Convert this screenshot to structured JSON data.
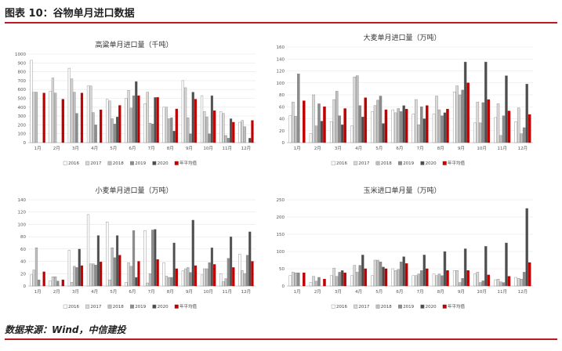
{
  "header": {
    "title": "图表 10：谷物单月进口数据"
  },
  "footer": {
    "source": "数据来源：Wind，中信建投"
  },
  "colors": {
    "2016": "#ffffff",
    "2017": "#d9d9d9",
    "2018": "#bfbfbf",
    "2019": "#8c8c8c",
    "2020": "#4d4d4d",
    "avg": "#c00000",
    "accent": "#b81c22"
  },
  "chart_data": [
    {
      "type": "bar",
      "title": "高粱单月进口量（千吨）",
      "categories": [
        "1月",
        "2月",
        "3月",
        "4月",
        "5月",
        "6月",
        "7月",
        "8月",
        "9月",
        "10月",
        "11月",
        "12月"
      ],
      "ylim": [
        0,
        1000
      ],
      "ystep": 100,
      "legend_position": "bottom",
      "series": [
        {
          "name": "2016",
          "values": [
            930,
            580,
            840,
            640,
            490,
            500,
            440,
            400,
            700,
            530,
            350,
            230
          ]
        },
        {
          "name": "2017",
          "values": [
            570,
            730,
            720,
            640,
            470,
            590,
            570,
            400,
            620,
            350,
            330,
            250
          ]
        },
        {
          "name": "2018",
          "values": [
            570,
            560,
            570,
            340,
            270,
            390,
            220,
            270,
            280,
            290,
            80,
            180
          ]
        },
        {
          "name": "2019",
          "values": [
            0,
            0,
            330,
            200,
            210,
            530,
            210,
            280,
            100,
            100,
            50,
            0
          ]
        },
        {
          "name": "2020",
          "values": [
            0,
            0,
            0,
            0,
            290,
            690,
            510,
            130,
            570,
            530,
            270,
            50
          ]
        },
        {
          "name": "年平均值",
          "values": [
            560,
            490,
            560,
            370,
            420,
            530,
            510,
            380,
            490,
            360,
            230,
            250
          ]
        }
      ]
    },
    {
      "type": "bar",
      "title": "大麦单月进口量（万吨）",
      "categories": [
        "1月",
        "2月",
        "3月",
        "4月",
        "5月",
        "6月",
        "7月",
        "8月",
        "9月",
        "10月",
        "11月",
        "12月"
      ],
      "ylim": [
        0,
        160
      ],
      "ystep": 20,
      "legend_position": "bottom",
      "series": [
        {
          "name": "2016",
          "values": [
            45,
            15,
            35,
            28,
            52,
            55,
            48,
            48,
            85,
            33,
            42,
            35
          ]
        },
        {
          "name": "2017",
          "values": [
            68,
            80,
            72,
            110,
            62,
            50,
            72,
            78,
            95,
            68,
            65,
            58
          ]
        },
        {
          "name": "2018",
          "values": [
            44,
            28,
            86,
            112,
            71,
            57,
            30,
            55,
            80,
            33,
            12,
            15
          ]
        },
        {
          "name": "2019",
          "values": [
            115,
            65,
            45,
            62,
            78,
            52,
            60,
            45,
            88,
            67,
            45,
            25
          ]
        },
        {
          "name": "2020",
          "values": [
            0,
            36,
            30,
            43,
            32,
            62,
            40,
            50,
            135,
            135,
            112,
            98
          ]
        },
        {
          "name": "年平均值",
          "values": [
            70,
            60,
            57,
            75,
            55,
            56,
            62,
            56,
            100,
            72,
            53,
            47
          ]
        }
      ]
    },
    {
      "type": "bar",
      "title": "小麦单月进口量（万吨）",
      "categories": [
        "1月",
        "2月",
        "3月",
        "4月",
        "5月",
        "6月",
        "7月",
        "8月",
        "9月",
        "10月",
        "11月",
        "12月"
      ],
      "ylim": [
        0,
        140
      ],
      "ystep": 20,
      "legend_position": "bottom",
      "series": [
        {
          "name": "2016",
          "values": [
            18,
            8,
            58,
            116,
            104,
            6,
            90,
            38,
            25,
            18,
            20,
            52
          ]
        },
        {
          "name": "2017",
          "values": [
            26,
            15,
            6,
            36,
            10,
            38,
            5,
            16,
            28,
            28,
            7,
            25
          ]
        },
        {
          "name": "2018",
          "values": [
            62,
            15,
            32,
            36,
            62,
            32,
            20,
            14,
            30,
            28,
            12,
            20
          ]
        },
        {
          "name": "2019",
          "values": [
            10,
            8,
            30,
            34,
            46,
            90,
            91,
            14,
            22,
            38,
            45,
            50
          ]
        },
        {
          "name": "2020",
          "values": [
            0,
            0,
            60,
            82,
            82,
            14,
            92,
            70,
            107,
            62,
            80,
            88
          ]
        },
        {
          "name": "年平均值",
          "values": [
            23,
            10,
            33,
            39,
            50,
            40,
            43,
            28,
            33,
            35,
            30,
            40
          ]
        }
      ]
    },
    {
      "type": "bar",
      "title": "玉米进口单月量（万吨）",
      "categories": [
        "1月",
        "2月",
        "3月",
        "4月",
        "5月",
        "6月",
        "7月",
        "8月",
        "9月",
        "10月",
        "11月",
        "12月"
      ],
      "ylim": [
        0,
        250
      ],
      "ystep": 50,
      "legend_position": "bottom",
      "series": [
        {
          "name": "2016",
          "values": [
            30,
            10,
            30,
            30,
            30,
            50,
            30,
            35,
            45,
            35,
            18,
            25
          ]
        },
        {
          "name": "2017",
          "values": [
            40,
            28,
            52,
            60,
            75,
            45,
            30,
            30,
            45,
            40,
            20,
            22
          ]
        },
        {
          "name": "2018",
          "values": [
            38,
            14,
            28,
            40,
            75,
            48,
            35,
            35,
            10,
            10,
            12,
            20
          ]
        },
        {
          "name": "2019",
          "values": [
            38,
            25,
            40,
            60,
            70,
            70,
            45,
            30,
            22,
            15,
            10,
            40
          ]
        },
        {
          "name": "2020",
          "values": [
            0,
            0,
            45,
            90,
            55,
            85,
            90,
            100,
            108,
            115,
            125,
            225
          ]
        },
        {
          "name": "年平均值",
          "values": [
            38,
            20,
            38,
            50,
            50,
            65,
            50,
            45,
            45,
            32,
            28,
            68
          ]
        }
      ]
    }
  ]
}
